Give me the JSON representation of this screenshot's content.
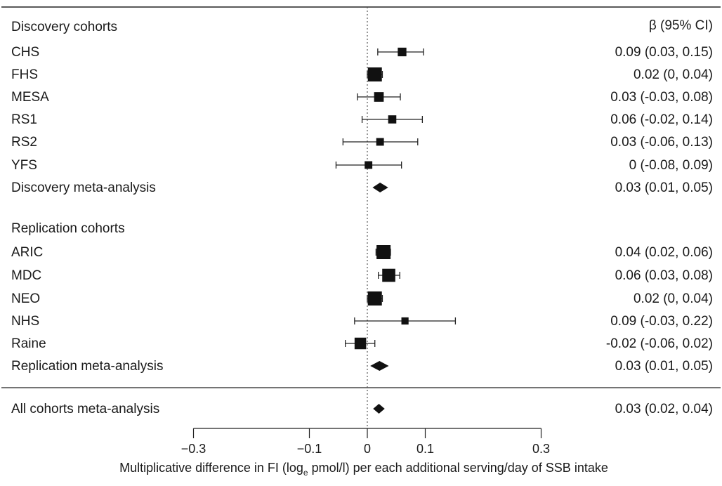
{
  "chart_data": {
    "type": "forest",
    "column_header": "β (95% CI)",
    "xlabel_prefix": "Multiplicative difference in FI (log",
    "xlabel_sub": "e",
    "xlabel_suffix": " pmol/l) per each additional serving/day of SSB intake",
    "xlim": [
      -0.3,
      0.3
    ],
    "xticks": [
      {
        "value": -0.3,
        "label": "−0.3"
      },
      {
        "value": -0.1,
        "label": "−0.1"
      },
      {
        "value": 0,
        "label": "0"
      },
      {
        "value": 0.1,
        "label": "0.1"
      },
      {
        "value": 0.3,
        "label": "0.3"
      }
    ],
    "reference_line": 0,
    "rows": [
      {
        "kind": "header",
        "label": "Discovery cohorts"
      },
      {
        "kind": "study",
        "label": "CHS",
        "est": 0.06,
        "lo": 0.018,
        "hi": 0.097,
        "weight": 0.45,
        "ci": "0.09 (0.03, 0.15)"
      },
      {
        "kind": "study",
        "label": "FHS",
        "est": 0.013,
        "lo": 0.0,
        "hi": 0.026,
        "weight": 1.0,
        "ci": "0.02 (0, 0.04)"
      },
      {
        "kind": "study",
        "label": "MESA",
        "est": 0.02,
        "lo": -0.017,
        "hi": 0.057,
        "weight": 0.55,
        "ci": "0.03 (-0.03, 0.08)"
      },
      {
        "kind": "study",
        "label": "RS1",
        "est": 0.043,
        "lo": -0.009,
        "hi": 0.095,
        "weight": 0.4,
        "ci": "0.06 (-0.02, 0.14)"
      },
      {
        "kind": "study",
        "label": "RS2",
        "est": 0.022,
        "lo": -0.042,
        "hi": 0.087,
        "weight": 0.35,
        "ci": "0.03 (-0.06, 0.13)"
      },
      {
        "kind": "study",
        "label": "YFS",
        "est": 0.002,
        "lo": -0.054,
        "hi": 0.059,
        "weight": 0.35,
        "ci": "0 (-0.08, 0.09)"
      },
      {
        "kind": "meta",
        "label": "Discovery meta-analysis",
        "est": 0.022,
        "lo": 0.009,
        "hi": 0.036,
        "ci": "0.03 (0.01, 0.05)"
      },
      {
        "kind": "gap"
      },
      {
        "kind": "header",
        "label": "Replication cohorts"
      },
      {
        "kind": "study",
        "label": "ARIC",
        "est": 0.028,
        "lo": 0.015,
        "hi": 0.04,
        "weight": 1.0,
        "ci": "0.04 (0.02, 0.06)"
      },
      {
        "kind": "study",
        "label": "MDC",
        "est": 0.037,
        "lo": 0.019,
        "hi": 0.056,
        "weight": 0.9,
        "ci": "0.06 (0.03, 0.08)"
      },
      {
        "kind": "study",
        "label": "NEO",
        "est": 0.013,
        "lo": 0.0,
        "hi": 0.026,
        "weight": 1.0,
        "ci": "0.02 (0, 0.04)"
      },
      {
        "kind": "study",
        "label": "NHS",
        "est": 0.065,
        "lo": -0.022,
        "hi": 0.152,
        "weight": 0.3,
        "ci": "0.09 (-0.03, 0.22)"
      },
      {
        "kind": "study",
        "label": "Raine",
        "est": -0.012,
        "lo": -0.038,
        "hi": 0.013,
        "weight": 0.75,
        "ci": "-0.02 (-0.06, 0.02)"
      },
      {
        "kind": "meta",
        "label": "Replication meta-analysis",
        "est": 0.021,
        "lo": 0.005,
        "hi": 0.037,
        "ci": "0.03 (0.01, 0.05)"
      },
      {
        "kind": "gap"
      },
      {
        "kind": "meta",
        "label": "All cohorts meta-analysis",
        "est": 0.02,
        "lo": 0.01,
        "hi": 0.03,
        "ci": "0.03 (0.02, 0.04)"
      }
    ]
  }
}
